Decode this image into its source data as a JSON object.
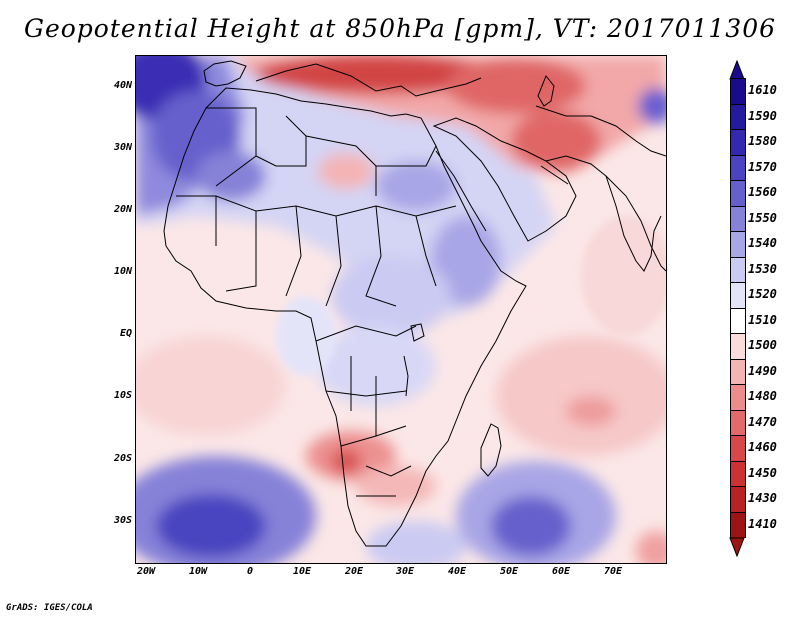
{
  "title": "Geopotential Height at 850hPa [gpm], VT: 2017011306",
  "credit": "GrADS: IGES/COLA",
  "map": {
    "lat_labels": [
      "40N",
      "30N",
      "20N",
      "10N",
      "EQ",
      "10S",
      "20S",
      "30S"
    ],
    "lon_labels": [
      "20W",
      "10W",
      "0",
      "10E",
      "20E",
      "30E",
      "40E",
      "50E",
      "60E",
      "70E"
    ],
    "lon_range": [
      -22,
      80
    ],
    "lat_range": [
      -37,
      45
    ]
  },
  "legend": {
    "labels": [
      "1610",
      "1590",
      "1580",
      "1570",
      "1560",
      "1550",
      "1540",
      "1530",
      "1520",
      "1510",
      "1500",
      "1490",
      "1480",
      "1470",
      "1460",
      "1450",
      "1430",
      "1410"
    ],
    "colors": [
      "#1a0a8c",
      "#241a9e",
      "#3328b0",
      "#4a44c0",
      "#6660cc",
      "#8682d8",
      "#a8a6e6",
      "#cbcaf2",
      "#e4e4f9",
      "#ffffff",
      "#fbdcdc",
      "#f4b4b4",
      "#ec8c8c",
      "#e36a6a",
      "#d84848",
      "#cc3232",
      "#b82222",
      "#9c1414"
    ]
  }
}
